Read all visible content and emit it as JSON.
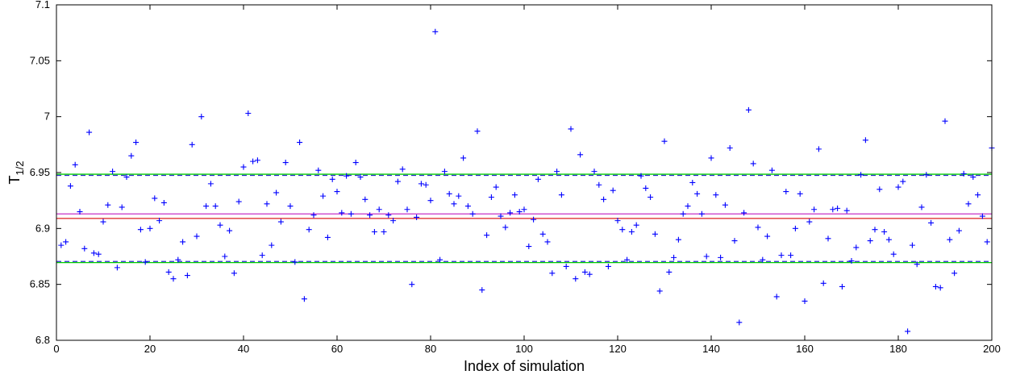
{
  "chart_data": {
    "type": "scatter",
    "title": "",
    "xlabel": "Index of simulation",
    "ylabel": "T",
    "ylabel_subscript": "1/2",
    "xlim": [
      0,
      200
    ],
    "ylim": [
      6.8,
      7.1
    ],
    "xticks": [
      "0",
      "20",
      "40",
      "60",
      "80",
      "100",
      "120",
      "140",
      "160",
      "180",
      "200"
    ],
    "xtick_values": [
      0,
      20,
      40,
      60,
      80,
      100,
      120,
      140,
      160,
      180,
      200
    ],
    "yticks": [
      "6.8",
      "6.85",
      "6.9",
      "6.95",
      "7",
      "7.05",
      "7.1"
    ],
    "ytick_values": [
      6.8,
      6.85,
      6.9,
      6.95,
      7.0,
      7.05,
      7.1
    ],
    "grid": false,
    "marker": "plus",
    "marker_color": "#0000ff",
    "points": [
      [
        1,
        6.885
      ],
      [
        2,
        6.888
      ],
      [
        3,
        6.938
      ],
      [
        4,
        6.957
      ],
      [
        5,
        6.915
      ],
      [
        6,
        6.882
      ],
      [
        7,
        6.986
      ],
      [
        8,
        6.878
      ],
      [
        9,
        6.877
      ],
      [
        10,
        6.906
      ],
      [
        11,
        6.921
      ],
      [
        12,
        6.951
      ],
      [
        13,
        6.865
      ],
      [
        14,
        6.919
      ],
      [
        15,
        6.946
      ],
      [
        16,
        6.965
      ],
      [
        17,
        6.977
      ],
      [
        18,
        6.899
      ],
      [
        19,
        6.87
      ],
      [
        20,
        6.9
      ],
      [
        21,
        6.927
      ],
      [
        22,
        6.907
      ],
      [
        23,
        6.923
      ],
      [
        24,
        6.861
      ],
      [
        25,
        6.855
      ],
      [
        26,
        6.872
      ],
      [
        27,
        6.888
      ],
      [
        28,
        6.858
      ],
      [
        29,
        6.975
      ],
      [
        30,
        6.893
      ],
      [
        31,
        7.0
      ],
      [
        32,
        6.92
      ],
      [
        33,
        6.94
      ],
      [
        34,
        6.92
      ],
      [
        35,
        6.903
      ],
      [
        36,
        6.875
      ],
      [
        37,
        6.898
      ],
      [
        38,
        6.86
      ],
      [
        39,
        6.924
      ],
      [
        40,
        6.955
      ],
      [
        41,
        7.003
      ],
      [
        42,
        6.96
      ],
      [
        43,
        6.961
      ],
      [
        44,
        6.876
      ],
      [
        45,
        6.922
      ],
      [
        46,
        6.885
      ],
      [
        47,
        6.932
      ],
      [
        48,
        6.906
      ],
      [
        49,
        6.959
      ],
      [
        50,
        6.92
      ],
      [
        51,
        6.87
      ],
      [
        52,
        6.977
      ],
      [
        53,
        6.837
      ],
      [
        54,
        6.899
      ],
      [
        55,
        6.912
      ],
      [
        56,
        6.952
      ],
      [
        57,
        6.929
      ],
      [
        58,
        6.892
      ],
      [
        59,
        6.944
      ],
      [
        60,
        6.933
      ],
      [
        61,
        6.914
      ],
      [
        62,
        6.947
      ],
      [
        63,
        6.913
      ],
      [
        64,
        6.959
      ],
      [
        65,
        6.946
      ],
      [
        66,
        6.926
      ],
      [
        67,
        6.912
      ],
      [
        68,
        6.897
      ],
      [
        69,
        6.917
      ],
      [
        70,
        6.897
      ],
      [
        71,
        6.912
      ],
      [
        72,
        6.907
      ],
      [
        73,
        6.942
      ],
      [
        74,
        6.953
      ],
      [
        75,
        6.917
      ],
      [
        76,
        6.85
      ],
      [
        77,
        6.91
      ],
      [
        78,
        6.94
      ],
      [
        79,
        6.939
      ],
      [
        80,
        6.925
      ],
      [
        81,
        7.076
      ],
      [
        82,
        6.872
      ],
      [
        83,
        6.951
      ],
      [
        84,
        6.931
      ],
      [
        85,
        6.922
      ],
      [
        86,
        6.929
      ],
      [
        87,
        6.963
      ],
      [
        88,
        6.92
      ],
      [
        89,
        6.913
      ],
      [
        90,
        6.987
      ],
      [
        91,
        6.845
      ],
      [
        92,
        6.894
      ],
      [
        93,
        6.928
      ],
      [
        94,
        6.937
      ],
      [
        95,
        6.911
      ],
      [
        96,
        6.901
      ],
      [
        97,
        6.914
      ],
      [
        98,
        6.93
      ],
      [
        99,
        6.915
      ],
      [
        100,
        6.917
      ],
      [
        101,
        6.884
      ],
      [
        102,
        6.908
      ],
      [
        103,
        6.944
      ],
      [
        104,
        6.895
      ],
      [
        105,
        6.888
      ],
      [
        106,
        6.86
      ],
      [
        107,
        6.951
      ],
      [
        108,
        6.93
      ],
      [
        109,
        6.866
      ],
      [
        110,
        6.989
      ],
      [
        111,
        6.855
      ],
      [
        112,
        6.966
      ],
      [
        113,
        6.861
      ],
      [
        114,
        6.859
      ],
      [
        115,
        6.951
      ],
      [
        116,
        6.939
      ],
      [
        117,
        6.926
      ],
      [
        118,
        6.866
      ],
      [
        119,
        6.934
      ],
      [
        120,
        6.907
      ],
      [
        121,
        6.899
      ],
      [
        122,
        6.872
      ],
      [
        123,
        6.897
      ],
      [
        124,
        6.903
      ],
      [
        125,
        6.947
      ],
      [
        126,
        6.936
      ],
      [
        127,
        6.928
      ],
      [
        128,
        6.895
      ],
      [
        129,
        6.844
      ],
      [
        130,
        6.978
      ],
      [
        131,
        6.861
      ],
      [
        132,
        6.874
      ],
      [
        133,
        6.89
      ],
      [
        134,
        6.913
      ],
      [
        135,
        6.92
      ],
      [
        136,
        6.941
      ],
      [
        137,
        6.931
      ],
      [
        138,
        6.913
      ],
      [
        139,
        6.875
      ],
      [
        140,
        6.963
      ],
      [
        141,
        6.93
      ],
      [
        142,
        6.874
      ],
      [
        143,
        6.921
      ],
      [
        144,
        6.972
      ],
      [
        145,
        6.889
      ],
      [
        146,
        6.816
      ],
      [
        147,
        6.914
      ],
      [
        148,
        7.006
      ],
      [
        149,
        6.958
      ],
      [
        150,
        6.901
      ],
      [
        151,
        6.872
      ],
      [
        152,
        6.893
      ],
      [
        153,
        6.952
      ],
      [
        154,
        6.839
      ],
      [
        155,
        6.876
      ],
      [
        156,
        6.933
      ],
      [
        157,
        6.876
      ],
      [
        158,
        6.9
      ],
      [
        159,
        6.931
      ],
      [
        160,
        6.835
      ],
      [
        161,
        6.906
      ],
      [
        162,
        6.917
      ],
      [
        163,
        6.971
      ],
      [
        164,
        6.851
      ],
      [
        165,
        6.891
      ],
      [
        166,
        6.917
      ],
      [
        167,
        6.918
      ],
      [
        168,
        6.848
      ],
      [
        169,
        6.916
      ],
      [
        170,
        6.871
      ],
      [
        171,
        6.883
      ],
      [
        172,
        6.948
      ],
      [
        173,
        6.979
      ],
      [
        174,
        6.889
      ],
      [
        175,
        6.899
      ],
      [
        176,
        6.935
      ],
      [
        177,
        6.897
      ],
      [
        178,
        6.89
      ],
      [
        179,
        6.877
      ],
      [
        180,
        6.937
      ],
      [
        181,
        6.942
      ],
      [
        182,
        6.808
      ],
      [
        183,
        6.885
      ],
      [
        184,
        6.868
      ],
      [
        185,
        6.919
      ],
      [
        186,
        6.948
      ],
      [
        187,
        6.905
      ],
      [
        188,
        6.848
      ],
      [
        189,
        6.847
      ],
      [
        190,
        6.996
      ],
      [
        191,
        6.89
      ],
      [
        192,
        6.86
      ],
      [
        193,
        6.898
      ],
      [
        194,
        6.949
      ],
      [
        195,
        6.922
      ],
      [
        196,
        6.946
      ],
      [
        197,
        6.93
      ],
      [
        198,
        6.911
      ],
      [
        199,
        6.888
      ],
      [
        200,
        6.972
      ]
    ],
    "reference_lines": [
      {
        "y": 6.9485,
        "color": "#00cc00",
        "style": "solid"
      },
      {
        "y": 6.9475,
        "color": "#2a2acc",
        "style": "dashed"
      },
      {
        "y": 6.913,
        "color": "#cc44cc",
        "style": "solid"
      },
      {
        "y": 6.909,
        "color": "#dd2222",
        "style": "solid"
      },
      {
        "y": 6.8705,
        "color": "#2a2acc",
        "style": "dashed"
      },
      {
        "y": 6.8695,
        "color": "#00cc00",
        "style": "solid"
      }
    ]
  }
}
